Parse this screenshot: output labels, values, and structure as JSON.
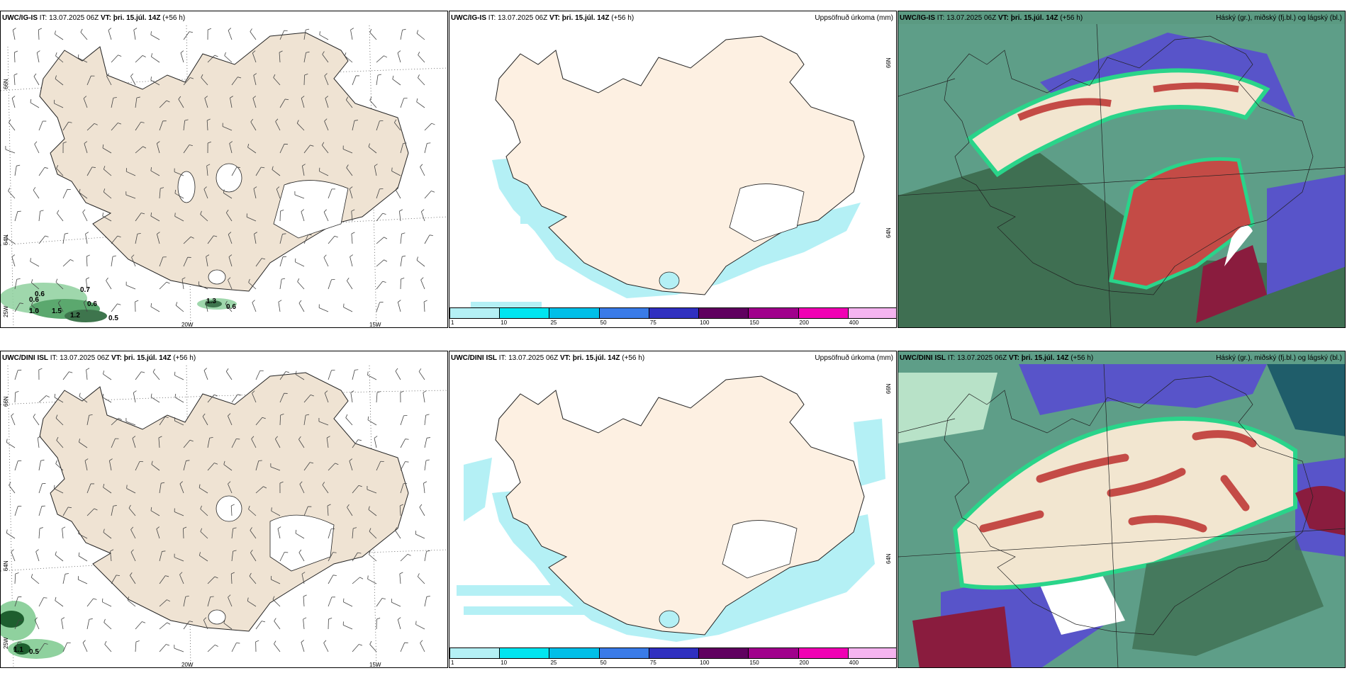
{
  "rows": [
    {
      "model": "UWC/IG-IS",
      "it": " IT: 13.07.2025 06Z ",
      "vt_label": "VT:",
      "vt": " þri. 15.júl. 14Z",
      "lead": " (+56 h)"
    },
    {
      "model": "UWC/DINI ISL",
      "it": " IT: 13.07.2025 06Z ",
      "vt_label": "VT:",
      "vt": " þri. 15.júl. 14Z",
      "lead": " (+56 h)"
    }
  ],
  "panels": {
    "precip_title": "Uppsöfnuð úrkoma (mm)",
    "cloud_title": "Háský (gr.), miðský (fj.bl.) og lágský (bl.)"
  },
  "axis": {
    "lat66": "66N",
    "lat64": "64N",
    "lon25": "25W",
    "lon20": "20W",
    "lon15": "15W"
  },
  "colorbar": {
    "ticks": [
      "1",
      "10",
      "25",
      "50",
      "75",
      "100",
      "150",
      "200",
      "400"
    ],
    "colors": [
      "#b4f0f5",
      "#00e5f0",
      "#00bfe8",
      "#3a7be8",
      "#3030c0",
      "#600060",
      "#a0008c",
      "#f000b4",
      "#f5b4f0"
    ]
  },
  "wind_labels_top": [
    "0.7",
    "0.6",
    "0.6",
    "1.0",
    "1.5",
    "0.6",
    "1.2",
    "0.5",
    "0.6",
    "1.3"
  ],
  "wind_labels_bottom": [
    "1.1",
    "0.5"
  ],
  "colors": {
    "land": "#efe3d3",
    "land_top_precip": "#fdf0e2",
    "coast": "#222"
  }
}
